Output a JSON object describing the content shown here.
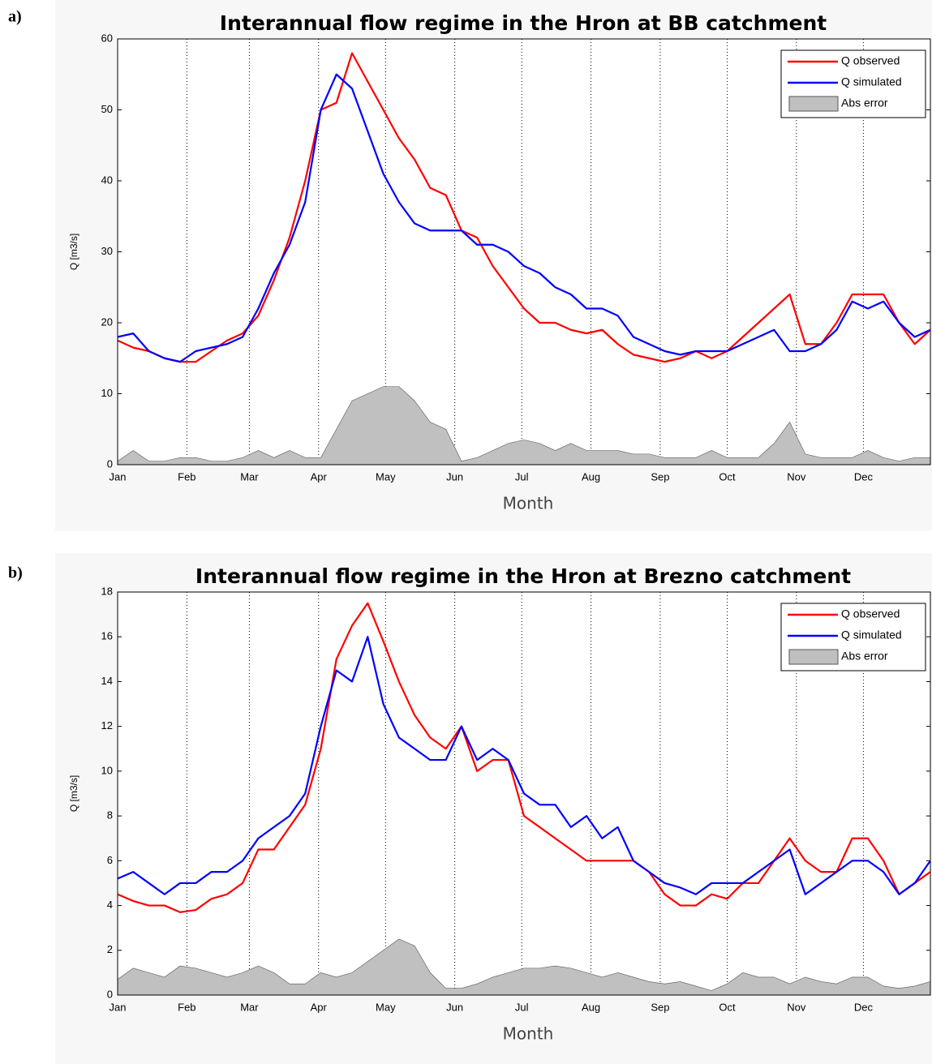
{
  "chart_data": [
    {
      "type": "line",
      "panel_label": "a)",
      "title": "Interannual flow regime in the Hron at BB catchment",
      "xlabel": "Month",
      "ylabel": "Q [m3/s]",
      "x": [
        1,
        8,
        15,
        22,
        29,
        36,
        43,
        50,
        57,
        64,
        71,
        78,
        85,
        92,
        99,
        106,
        113,
        120,
        127,
        134,
        141,
        148,
        155,
        162,
        169,
        176,
        183,
        190,
        197,
        204,
        211,
        218,
        225,
        232,
        239,
        246,
        253,
        260,
        267,
        274,
        281,
        288,
        295,
        302,
        309,
        316,
        323,
        330,
        337,
        344,
        351,
        358,
        365
      ],
      "series": [
        {
          "name": "Q observed",
          "color": "#ff0000",
          "style": "line",
          "values": [
            17.5,
            16.5,
            16,
            15,
            14.5,
            14.5,
            16,
            17.5,
            18.5,
            21,
            26,
            32,
            40,
            50,
            51,
            58,
            54,
            50,
            46,
            43,
            39,
            38,
            33,
            32,
            28,
            25,
            22,
            20,
            20,
            19,
            18.5,
            19,
            17,
            15.5,
            15,
            14.5,
            15,
            16,
            15,
            16,
            18,
            20,
            22,
            24,
            17,
            17,
            20,
            24,
            24,
            24,
            20,
            17,
            19
          ]
        },
        {
          "name": "Q simulated",
          "color": "#0000ff",
          "style": "line",
          "values": [
            18,
            18.5,
            16,
            15,
            14.5,
            16,
            16.5,
            17,
            18,
            22,
            27,
            31,
            37,
            50,
            55,
            53,
            47,
            41,
            37,
            34,
            33,
            33,
            33,
            31,
            31,
            30,
            28,
            27,
            25,
            24,
            22,
            22,
            21,
            18,
            17,
            16,
            15.5,
            16,
            16,
            16,
            17,
            18,
            19,
            16,
            16,
            17,
            19,
            23,
            22,
            23,
            20,
            18,
            19
          ]
        },
        {
          "name": "Abs error",
          "color": "#c0c0c0",
          "style": "area",
          "values": [
            0.5,
            2,
            0.5,
            0.5,
            1,
            1,
            0.5,
            0.5,
            1,
            2,
            1,
            2,
            1,
            1,
            5,
            9,
            10,
            11,
            11,
            9,
            6,
            5,
            0.5,
            1,
            2,
            3,
            3.5,
            3,
            2,
            3,
            2,
            2,
            2,
            1.5,
            1.5,
            1,
            1,
            1,
            2,
            1,
            1,
            1,
            3,
            6,
            1.5,
            1,
            1,
            1,
            2,
            1,
            0.5,
            1,
            1
          ]
        }
      ],
      "xlim": [
        1,
        365
      ],
      "xticks": [
        {
          "value": 1,
          "label": "Jan"
        },
        {
          "value": 32,
          "label": "Feb"
        },
        {
          "value": 60,
          "label": "Mar"
        },
        {
          "value": 91,
          "label": "Apr"
        },
        {
          "value": 121,
          "label": "May"
        },
        {
          "value": 152,
          "label": "Jun"
        },
        {
          "value": 182,
          "label": "Jul"
        },
        {
          "value": 213,
          "label": "Aug"
        },
        {
          "value": 244,
          "label": "Sep"
        },
        {
          "value": 274,
          "label": "Oct"
        },
        {
          "value": 305,
          "label": "Nov"
        },
        {
          "value": 335,
          "label": "Dec"
        }
      ],
      "ylim": [
        0,
        60
      ],
      "yticks": [
        0,
        10,
        20,
        30,
        40,
        50,
        60
      ],
      "grid": "x",
      "legend": "upper right"
    },
    {
      "type": "line",
      "panel_label": "b)",
      "title": "Interannual flow regime in the Hron at Brezno catchment",
      "xlabel": "Month",
      "ylabel": "Q [m3/s]",
      "x": [
        1,
        8,
        15,
        22,
        29,
        36,
        43,
        50,
        57,
        64,
        71,
        78,
        85,
        92,
        99,
        106,
        113,
        120,
        127,
        134,
        141,
        148,
        155,
        162,
        169,
        176,
        183,
        190,
        197,
        204,
        211,
        218,
        225,
        232,
        239,
        246,
        253,
        260,
        267,
        274,
        281,
        288,
        295,
        302,
        309,
        316,
        323,
        330,
        337,
        344,
        351,
        358,
        365
      ],
      "series": [
        {
          "name": "Q observed",
          "color": "#ff0000",
          "style": "line",
          "values": [
            4.5,
            4.2,
            4,
            4,
            3.7,
            3.8,
            4.3,
            4.5,
            5,
            6.5,
            6.5,
            7.5,
            8.5,
            11,
            15,
            16.5,
            17.5,
            15.8,
            14,
            12.5,
            11.5,
            11,
            12,
            10,
            10.5,
            10.5,
            8,
            7.5,
            7,
            6.5,
            6,
            6,
            6,
            6,
            5.5,
            4.5,
            4,
            4,
            4.5,
            4.3,
            5,
            5,
            6,
            7,
            6,
            5.5,
            5.5,
            7,
            7,
            6,
            4.5,
            5,
            5.5
          ]
        },
        {
          "name": "Q simulated",
          "color": "#0000ff",
          "style": "line",
          "values": [
            5.2,
            5.5,
            5,
            4.5,
            5,
            5,
            5.5,
            5.5,
            6,
            7,
            7.5,
            8,
            9,
            12,
            14.5,
            14,
            16,
            13,
            11.5,
            11,
            10.5,
            10.5,
            12,
            10.5,
            11,
            10.5,
            9,
            8.5,
            8.5,
            7.5,
            8,
            7,
            7.5,
            6,
            5.5,
            5,
            4.8,
            4.5,
            5,
            5,
            5,
            5.5,
            6,
            6.5,
            4.5,
            5,
            5.5,
            6,
            6,
            5.5,
            4.5,
            5,
            6
          ]
        },
        {
          "name": "Abs error",
          "color": "#c0c0c0",
          "style": "area",
          "values": [
            0.7,
            1.2,
            1,
            0.8,
            1.3,
            1.2,
            1,
            0.8,
            1,
            1.3,
            1,
            0.5,
            0.5,
            1,
            0.8,
            1,
            1.5,
            2,
            2.5,
            2.2,
            1,
            0.3,
            0.3,
            0.5,
            0.8,
            1,
            1.2,
            1.2,
            1.3,
            1.2,
            1,
            0.8,
            1,
            0.8,
            0.6,
            0.5,
            0.6,
            0.4,
            0.2,
            0.5,
            1,
            0.8,
            0.8,
            0.5,
            0.8,
            0.6,
            0.5,
            0.8,
            0.8,
            0.4,
            0.3,
            0.4,
            0.6
          ]
        }
      ],
      "xlim": [
        1,
        365
      ],
      "xticks": [
        {
          "value": 1,
          "label": "Jan"
        },
        {
          "value": 32,
          "label": "Feb"
        },
        {
          "value": 60,
          "label": "Mar"
        },
        {
          "value": 91,
          "label": "Apr"
        },
        {
          "value": 121,
          "label": "May"
        },
        {
          "value": 152,
          "label": "Jun"
        },
        {
          "value": 182,
          "label": "Jul"
        },
        {
          "value": 213,
          "label": "Aug"
        },
        {
          "value": 244,
          "label": "Sep"
        },
        {
          "value": 274,
          "label": "Oct"
        },
        {
          "value": 305,
          "label": "Nov"
        },
        {
          "value": 335,
          "label": "Dec"
        }
      ],
      "ylim": [
        0,
        18
      ],
      "yticks": [
        0,
        2,
        4,
        6,
        8,
        10,
        12,
        14,
        16,
        18
      ],
      "grid": "x",
      "legend": "upper right"
    }
  ]
}
